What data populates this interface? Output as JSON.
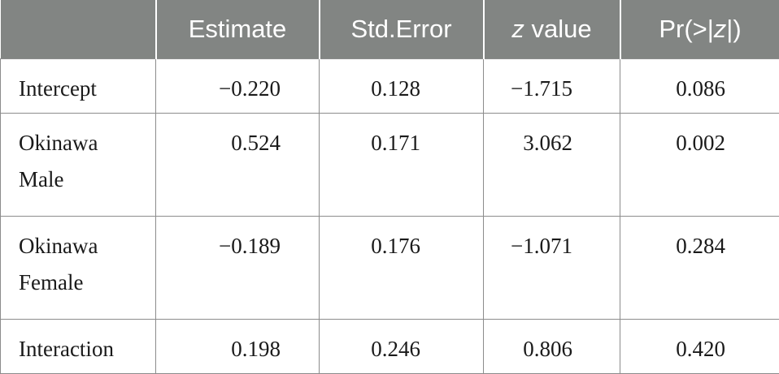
{
  "table": {
    "headers": [
      "Estimate",
      "Std.Error",
      "z value",
      "Pr(>|z|)"
    ],
    "header_parts": {
      "z_value": {
        "italic": "z",
        "rest": " value"
      },
      "pr": {
        "pre": "Pr(>|",
        "italic": "z",
        "post": "|)"
      }
    },
    "rows": [
      {
        "label": [
          "Intercept"
        ],
        "estimate": "−0.220",
        "std_error": "0.128",
        "z_value": "−1.715",
        "p": "0.086"
      },
      {
        "label": [
          "Okinawa",
          "Male"
        ],
        "estimate": "0.524",
        "std_error": "0.171",
        "z_value": "3.062",
        "p": "0.002"
      },
      {
        "label": [
          "Okinawa",
          "Female"
        ],
        "estimate": "−0.189",
        "std_error": "0.176",
        "z_value": "−1.071",
        "p": "0.284"
      },
      {
        "label": [
          "Interaction"
        ],
        "estimate": "0.198",
        "std_error": "0.246",
        "z_value": "0.806",
        "p": "0.420"
      }
    ]
  },
  "colors": {
    "header_bg": "#828583",
    "header_text": "#ffffff",
    "grid": "#8c8c8c",
    "body_text": "#1a1a1a"
  }
}
